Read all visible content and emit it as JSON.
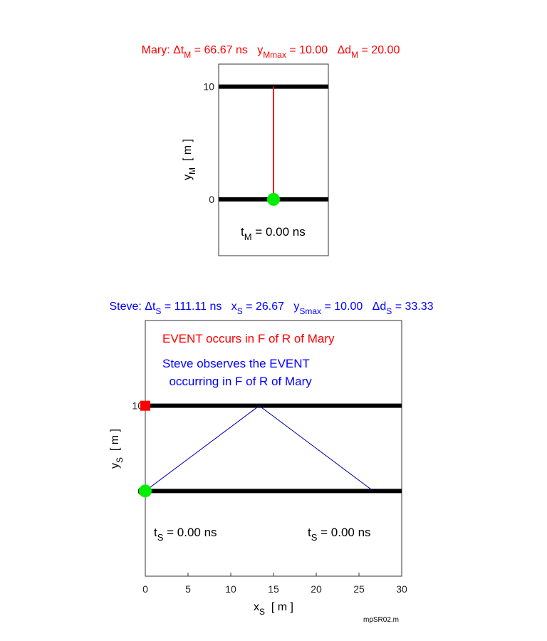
{
  "chart_data": [
    {
      "type": "line",
      "title": {
        "color": "#ff0000",
        "segments": [
          {
            "t": "Mary: ",
            "s": null
          },
          {
            "t": "Δt",
            "s": null
          },
          {
            "t": "M",
            "s": "sub"
          },
          {
            "t": " = 66.67 ns   y",
            "s": null
          },
          {
            "t": "Mmax",
            "s": "sub"
          },
          {
            "t": " = 10.00   Δd",
            "s": null
          },
          {
            "t": "M",
            "s": "sub"
          },
          {
            "t": " = 20.00",
            "s": null
          }
        ]
      },
      "ylabel": {
        "segments": [
          {
            "t": "y",
            "s": null
          },
          {
            "t": "M",
            "s": "sub"
          },
          {
            "t": "  [ m ]",
            "s": null
          }
        ]
      },
      "ylim": [
        -5,
        12
      ],
      "yticks": [
        0,
        10
      ],
      "ytick_labels": [
        "0",
        "10"
      ],
      "xlim": [
        0,
        1
      ],
      "floors": [
        0,
        10
      ],
      "path": {
        "color": "#ff0000",
        "x": [
          0.5,
          0.5
        ],
        "y": [
          0,
          10
        ]
      },
      "marker": {
        "shape": "circle",
        "color": "#00ee00",
        "x": 0.5,
        "y": 0
      },
      "annotations": [
        {
          "segments": [
            {
              "t": "t",
              "s": null
            },
            {
              "t": "M",
              "s": "sub"
            },
            {
              "t": " = 0.00 ns",
              "s": null
            }
          ],
          "color": "#000000"
        }
      ]
    },
    {
      "type": "line",
      "title": {
        "color": "#0000ff",
        "segments": [
          {
            "t": "Steve: ",
            "s": null
          },
          {
            "t": "Δt",
            "s": null
          },
          {
            "t": "S",
            "s": "sub"
          },
          {
            "t": " = 111.11 ns   x",
            "s": null
          },
          {
            "t": "S",
            "s": "sub"
          },
          {
            "t": " = 26.67   y",
            "s": null
          },
          {
            "t": "Smax",
            "s": "sub"
          },
          {
            "t": " = 10.00   Δd",
            "s": null
          },
          {
            "t": "S",
            "s": "sub"
          },
          {
            "t": " = 33.33",
            "s": null
          }
        ]
      },
      "xlabel": {
        "segments": [
          {
            "t": "x",
            "s": null
          },
          {
            "t": "S",
            "s": "sub"
          },
          {
            "t": "  [ m ]",
            "s": null
          }
        ]
      },
      "ylabel": {
        "segments": [
          {
            "t": "y",
            "s": null
          },
          {
            "t": "S",
            "s": "sub"
          },
          {
            "t": "  [ m ]",
            "s": null
          }
        ]
      },
      "xlim": [
        0,
        30
      ],
      "ylim": [
        -10,
        20
      ],
      "xticks": [
        0,
        5,
        10,
        15,
        20,
        25,
        30
      ],
      "xtick_labels": [
        "0",
        "5",
        "10",
        "15",
        "20",
        "25",
        "30"
      ],
      "yticks": [
        0,
        10
      ],
      "ytick_labels": [
        "0",
        "10"
      ],
      "floors": [
        0,
        10
      ],
      "path": {
        "color": "#0000aa",
        "x": [
          0,
          13.33,
          26.67
        ],
        "y": [
          0,
          10,
          0
        ]
      },
      "markers": [
        {
          "shape": "square",
          "color": "#ff0000",
          "x": 0,
          "y": 10
        },
        {
          "shape": "circle",
          "color": "#00ee00",
          "x": 0,
          "y": 0
        }
      ],
      "annotations": [
        {
          "segments": [
            {
              "t": "EVENT occurs in F of R of Mary",
              "s": null
            }
          ],
          "color": "#ff0000"
        },
        {
          "segments": [
            {
              "t": "Steve observes the EVENT",
              "s": null
            }
          ],
          "color": "#0000ff"
        },
        {
          "segments": [
            {
              "t": "  occurring in F of R of Mary",
              "s": null
            }
          ],
          "color": "#0000ff"
        },
        {
          "segments": [
            {
              "t": "t",
              "s": null
            },
            {
              "t": "S",
              "s": "sub"
            },
            {
              "t": " = 0.00 ns",
              "s": null
            }
          ],
          "color": "#000000"
        },
        {
          "segments": [
            {
              "t": "t",
              "s": null
            },
            {
              "t": "S",
              "s": "sub"
            },
            {
              "t": " = 0.00 ns",
              "s": null
            }
          ],
          "color": "#000000"
        }
      ]
    }
  ],
  "footer": "mpSR02.m"
}
